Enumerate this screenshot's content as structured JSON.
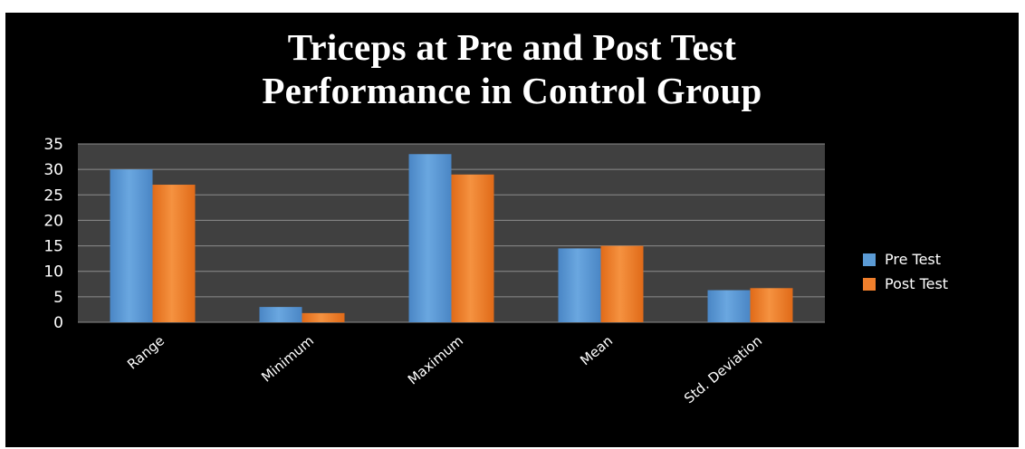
{
  "chart_data": {
    "type": "bar",
    "title_lines": [
      "Triceps at Pre and Post Test",
      "Performance in Control Group"
    ],
    "categories": [
      "Range",
      "Minimum",
      "Maximum",
      "Mean",
      "Std. Deviation"
    ],
    "series": [
      {
        "name": "Pre Test",
        "values": [
          30,
          3,
          33,
          14.5,
          6.3
        ]
      },
      {
        "name": "Post Test",
        "values": [
          27,
          1.8,
          29,
          15,
          6.7
        ]
      }
    ],
    "xlabel": "",
    "ylabel": "",
    "ylim": [
      0,
      35
    ],
    "yticks": [
      0,
      5,
      10,
      15,
      20,
      25,
      30,
      35
    ],
    "grid": true,
    "legend_position": "right"
  },
  "colors": {
    "background": "#000000",
    "plot_area": "#404040",
    "gridline": "#8c8c8c",
    "pre_test": "#5b9bd5",
    "post_test": "#f07f2c",
    "text": "#ffffff"
  }
}
